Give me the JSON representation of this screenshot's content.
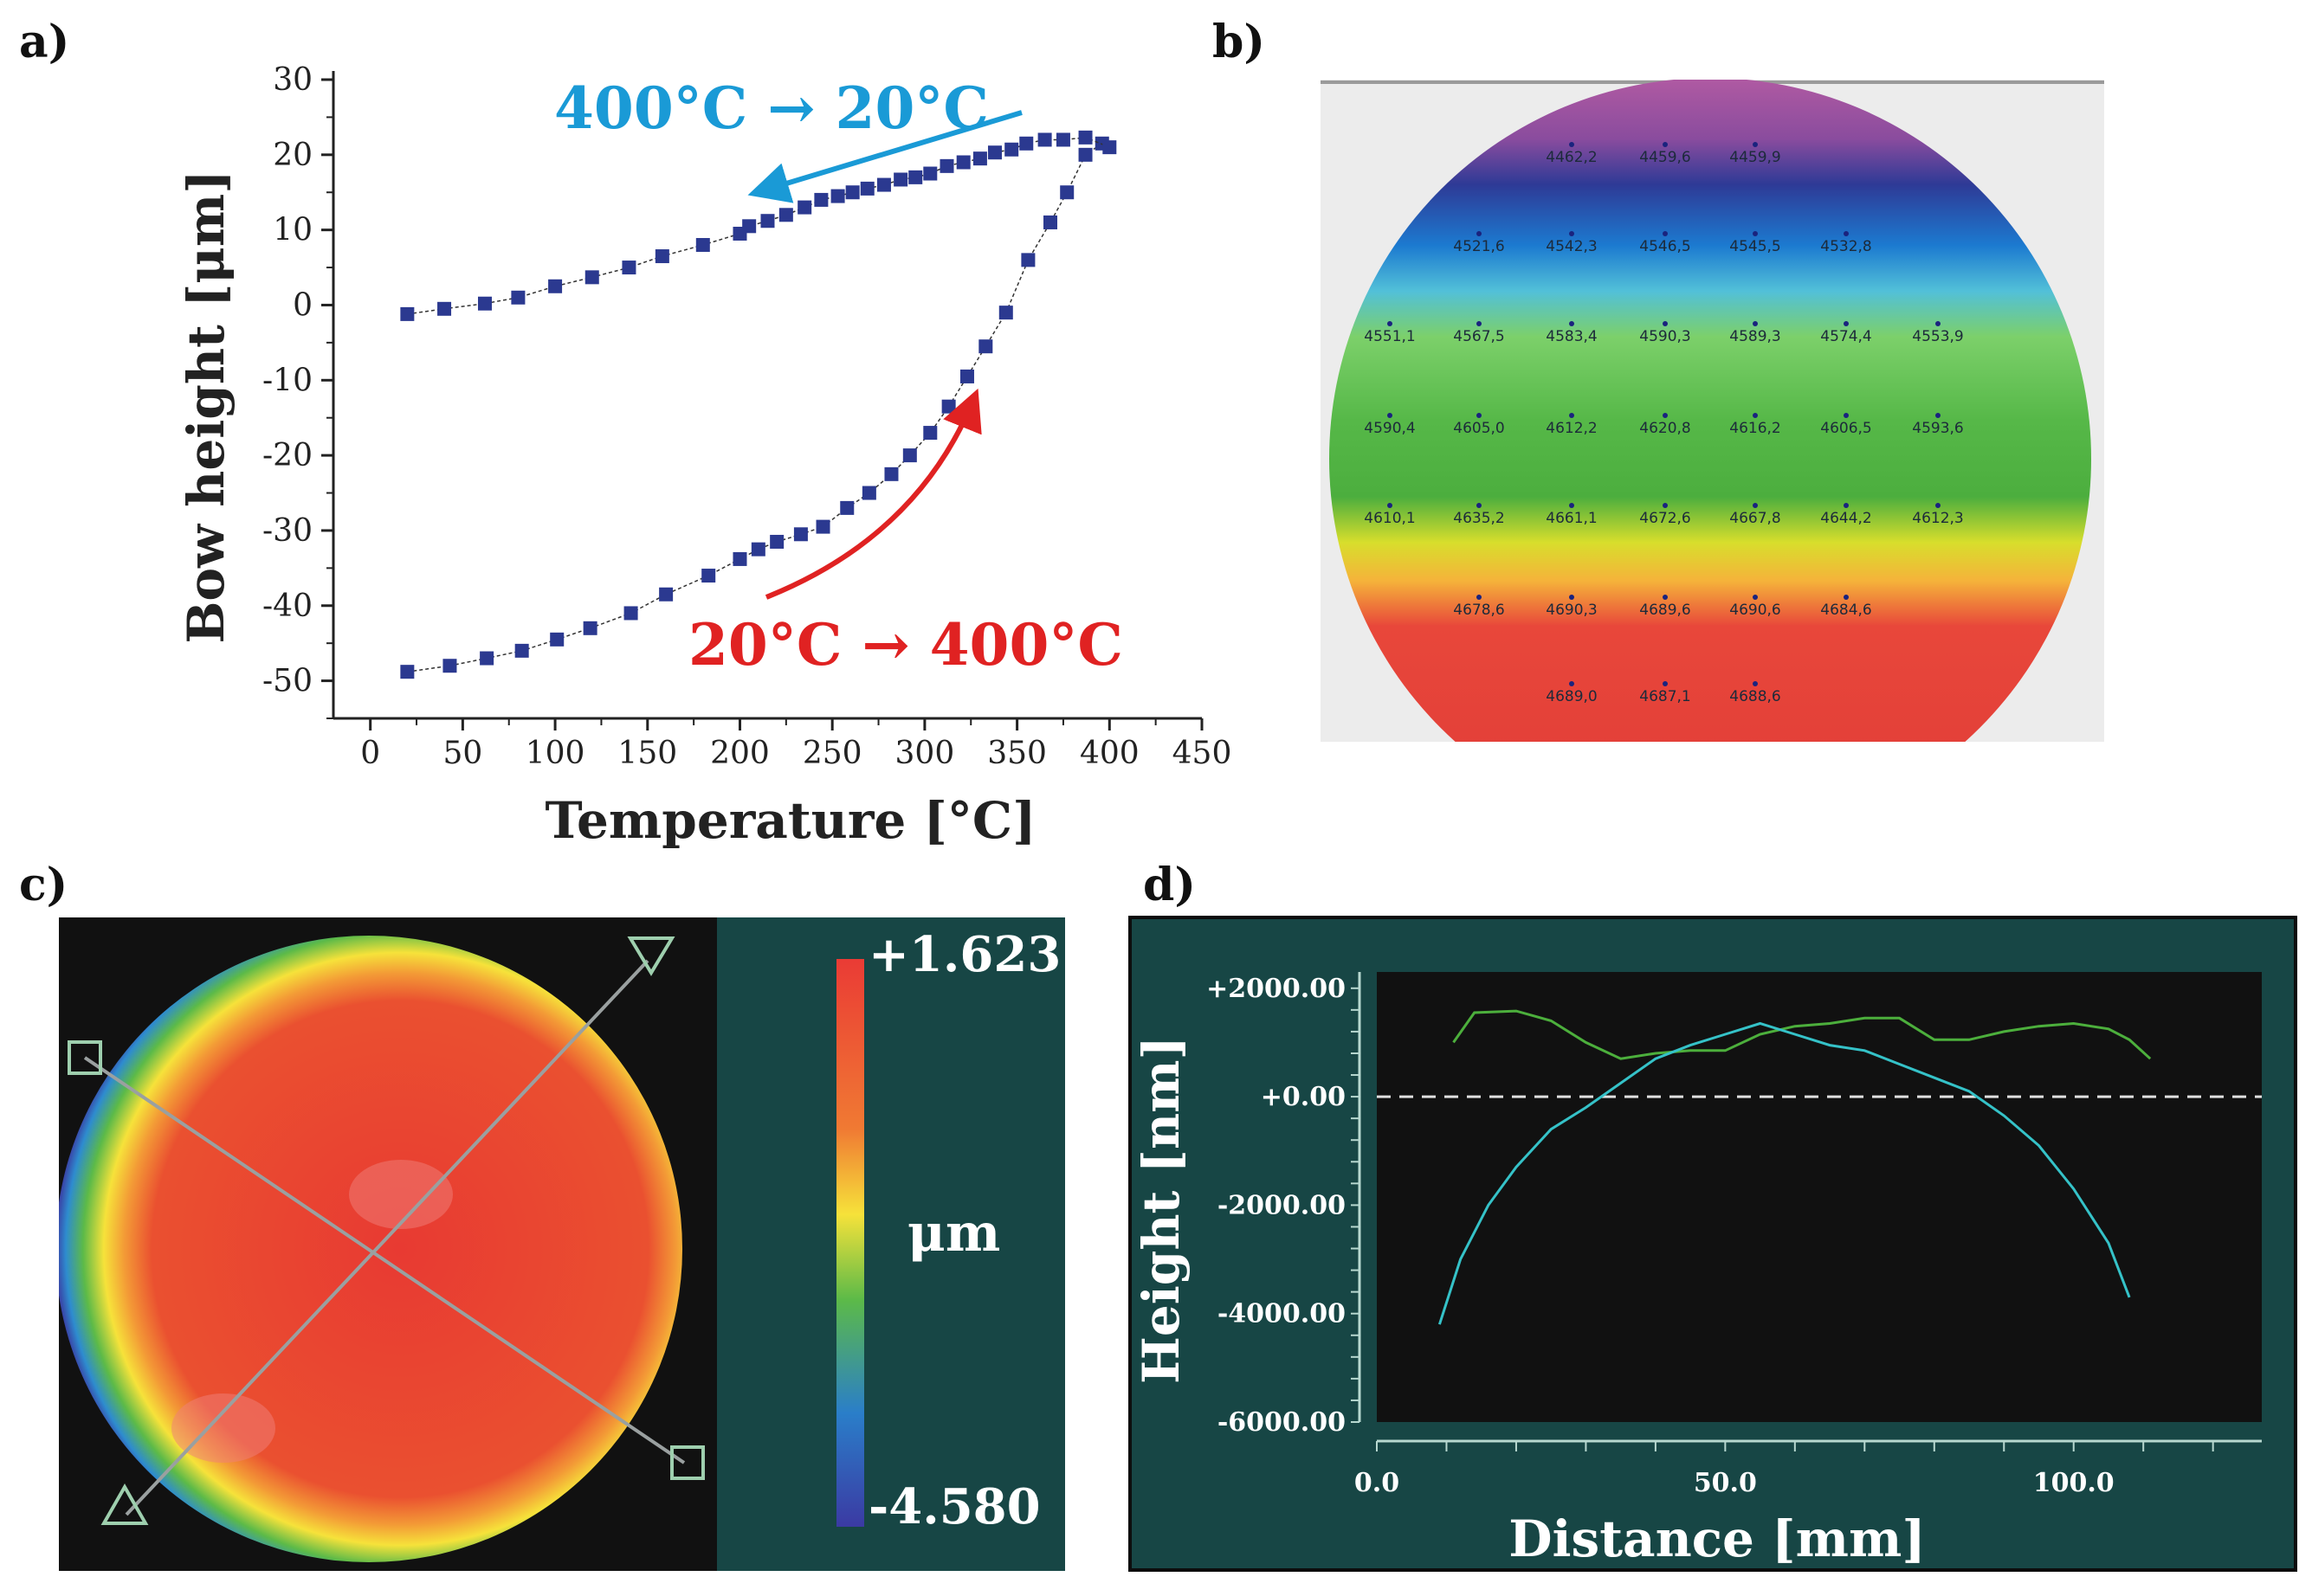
{
  "panel_labels": {
    "a": "a)",
    "b": "b)",
    "c": "c)",
    "d": "d)"
  },
  "chart_data": [
    {
      "panel": "a",
      "type": "scatter",
      "title": "",
      "xlabel": "Temperature [°C]",
      "ylabel": "Bow height [μm]",
      "xlim": [
        -20,
        450
      ],
      "ylim": [
        -55,
        30
      ],
      "xticks": [
        "0",
        "50",
        "100",
        "150",
        "200",
        "250",
        "300",
        "350",
        "400",
        "450"
      ],
      "yticks": [
        "30",
        "20",
        "10",
        "0",
        "-10",
        "-20",
        "-30",
        "-40",
        "-50"
      ],
      "annotations": {
        "cooling": "400°C → 20°C",
        "heating": "20°C → 400°C"
      },
      "colors": {
        "marker": "#2b3990",
        "cooling": "#1a9ad6",
        "heating": "#e02222"
      },
      "series": [
        {
          "name": "heating 20°C → 400°C",
          "x": [
            20,
            43,
            63,
            82,
            101,
            119,
            141,
            160,
            183,
            200,
            210,
            220,
            233,
            245,
            258,
            270,
            282,
            292,
            303,
            313,
            323,
            333,
            344,
            356,
            368,
            377,
            387,
            396
          ],
          "y": [
            -48.8,
            -48,
            -47,
            -46,
            -44.5,
            -43,
            -41,
            -38.5,
            -36,
            -33.8,
            -32.5,
            -31.5,
            -30.5,
            -29.5,
            -27,
            -25,
            -22.5,
            -20,
            -17,
            -13.5,
            -9.5,
            -5.5,
            -1,
            6,
            11,
            15,
            20,
            21.5
          ]
        },
        {
          "name": "cooling 400°C → 20°C",
          "x": [
            400,
            387,
            375,
            365,
            355,
            347,
            338,
            330,
            321,
            312,
            303,
            295,
            287,
            278,
            269,
            261,
            253,
            244,
            235,
            225,
            215,
            205,
            200,
            180,
            158,
            140,
            120,
            100,
            80,
            62,
            40,
            20
          ],
          "y": [
            21,
            22.3,
            22,
            22,
            21.5,
            20.7,
            20.3,
            19.5,
            19,
            18.5,
            17.5,
            17,
            16.7,
            16,
            15.5,
            15,
            14.5,
            14,
            13,
            12,
            11.2,
            10.5,
            9.5,
            8,
            6.5,
            5,
            3.7,
            2.5,
            1,
            0.2,
            -0.5,
            -1.2
          ]
        }
      ]
    },
    {
      "panel": "b",
      "type": "heatmap",
      "rows": [
        [
          "4462,2",
          "4459,6",
          "4459,9"
        ],
        [
          "4521,6",
          "4542,3",
          "4546,5",
          "4545,5",
          "4532,8"
        ],
        [
          "4551,1",
          "4567,5",
          "4583,4",
          "4590,3",
          "4589,3",
          "4574,4",
          "4553,9"
        ],
        [
          "4590,4",
          "4605,0",
          "4612,2",
          "4620,8",
          "4616,2",
          "4606,5",
          "4593,6"
        ],
        [
          "4610,1",
          "4635,2",
          "4661,1",
          "4672,6",
          "4667,8",
          "4644,2",
          "4612,3"
        ],
        [
          "4678,6",
          "4690,3",
          "4689,6",
          "4690,6",
          "4684,6"
        ],
        [
          "4689,0",
          "4687,1",
          "4688,6"
        ]
      ]
    },
    {
      "panel": "c",
      "type": "heatmap",
      "colorbar": {
        "max_label": "+1.623",
        "min_label": "-4.580",
        "unit": "μm",
        "max": 1.623,
        "min": -4.58
      }
    },
    {
      "panel": "d",
      "type": "line",
      "xlabel": "Distance [mm]",
      "ylabel": "Height [nm]",
      "xlim": [
        0,
        127
      ],
      "ylim": [
        -6000,
        2300
      ],
      "xticks": [
        "0.0",
        "50.0",
        "100.0"
      ],
      "yticks": [
        "+2000.00",
        "+0.00",
        "-2000.00",
        "-4000.00",
        "-6000.00"
      ],
      "colors": {
        "bg": "#174645",
        "plot_bg": "#111111",
        "green": "#4caf3c",
        "cyan": "#35c2c8"
      },
      "series": [
        {
          "name": "green profile",
          "x": [
            11,
            14,
            20,
            25,
            30,
            35,
            40,
            45,
            50,
            55,
            60,
            65,
            70,
            75,
            80,
            85,
            90,
            95,
            100,
            105,
            108,
            111
          ],
          "y": [
            1000,
            1550,
            1580,
            1400,
            1000,
            700,
            800,
            850,
            850,
            1150,
            1300,
            1350,
            1450,
            1450,
            1050,
            1050,
            1200,
            1300,
            1350,
            1250,
            1050,
            700
          ]
        },
        {
          "name": "cyan profile",
          "x": [
            9,
            12,
            16,
            20,
            25,
            30,
            35,
            40,
            45,
            50,
            55,
            60,
            65,
            70,
            75,
            80,
            85,
            90,
            95,
            100,
            105,
            108
          ],
          "y": [
            -4200,
            -3000,
            -2000,
            -1300,
            -600,
            -200,
            250,
            700,
            950,
            1150,
            1350,
            1150,
            950,
            850,
            600,
            350,
            100,
            -350,
            -900,
            -1700,
            -2700,
            -3700
          ]
        }
      ]
    }
  ]
}
